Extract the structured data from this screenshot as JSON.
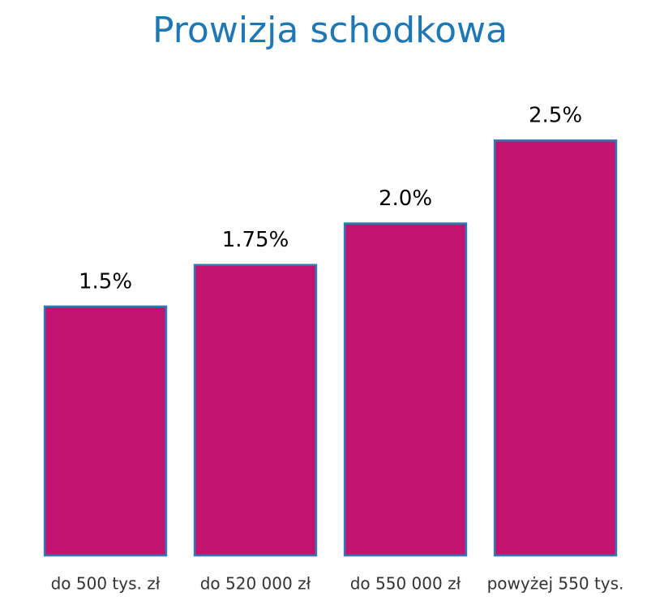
{
  "chart_data": {
    "type": "bar",
    "title": "Prowizja schodkowa",
    "categories": [
      "do 500 tys. zł",
      "do 520 000 zł",
      "do 550 000 zł",
      "powyżej 550 tys."
    ],
    "values": [
      1.5,
      1.75,
      2.0,
      2.5
    ],
    "value_labels": [
      "1.5%",
      "1.75%",
      "2.0%",
      "2.5%"
    ],
    "color": "#c2136f",
    "edge_color": "#2f7bb5",
    "ylim": [
      0,
      2.75
    ],
    "grid": false
  }
}
